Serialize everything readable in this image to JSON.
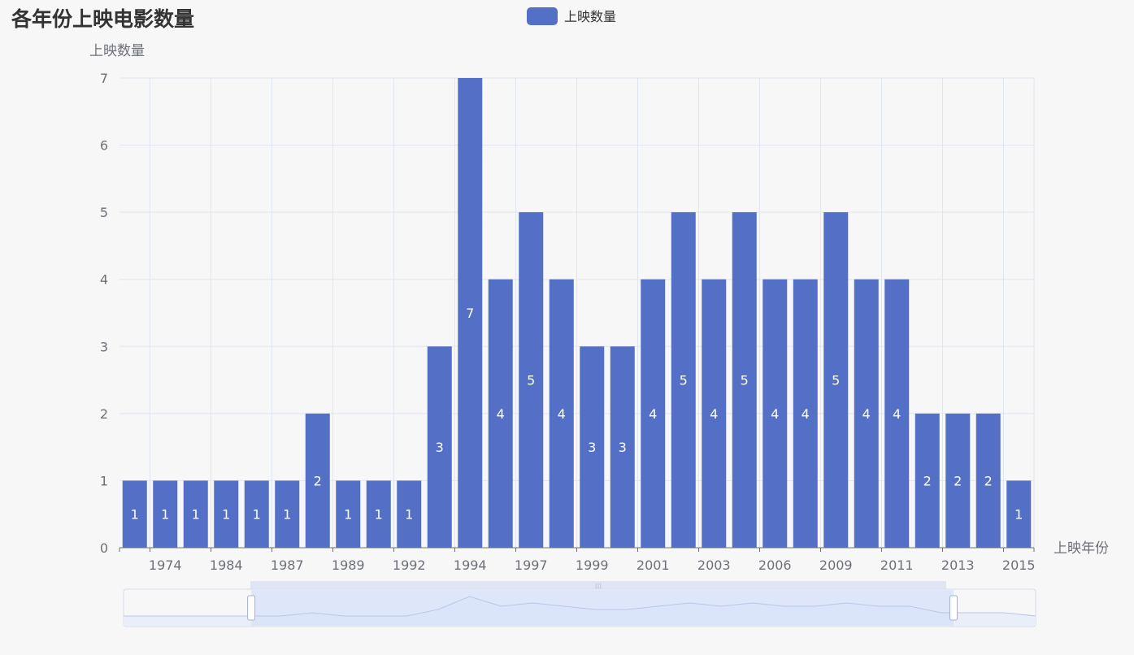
{
  "chart_data": {
    "type": "bar",
    "title": "各年份上映电影数量",
    "legend": {
      "items": [
        "上映数量"
      ],
      "position": "top-center"
    },
    "xlabel": "上映年份",
    "ylabel": "上映数量",
    "ylim": [
      0,
      7
    ],
    "y_ticks": [
      0,
      1,
      2,
      3,
      4,
      5,
      6,
      7
    ],
    "grid": true,
    "x_tick_labels": [
      "1974",
      "1984",
      "1987",
      "1989",
      "1992",
      "1994",
      "1997",
      "1999",
      "2001",
      "2003",
      "2006",
      "2009",
      "2011",
      "2013",
      "2015"
    ],
    "series": [
      {
        "name": "上映数量",
        "values": [
          1,
          1,
          1,
          1,
          1,
          1,
          2,
          1,
          1,
          1,
          3,
          7,
          4,
          5,
          4,
          3,
          3,
          4,
          5,
          4,
          5,
          4,
          4,
          5,
          4,
          4,
          2,
          2,
          2,
          1
        ]
      }
    ],
    "colors": {
      "bar": "#5470c6",
      "grid": "#e0e6f1",
      "axis": "#6e7079",
      "label": "#ffffff"
    },
    "data_zoom": {
      "type": "slider",
      "range_percent": [
        14,
        91
      ]
    }
  }
}
